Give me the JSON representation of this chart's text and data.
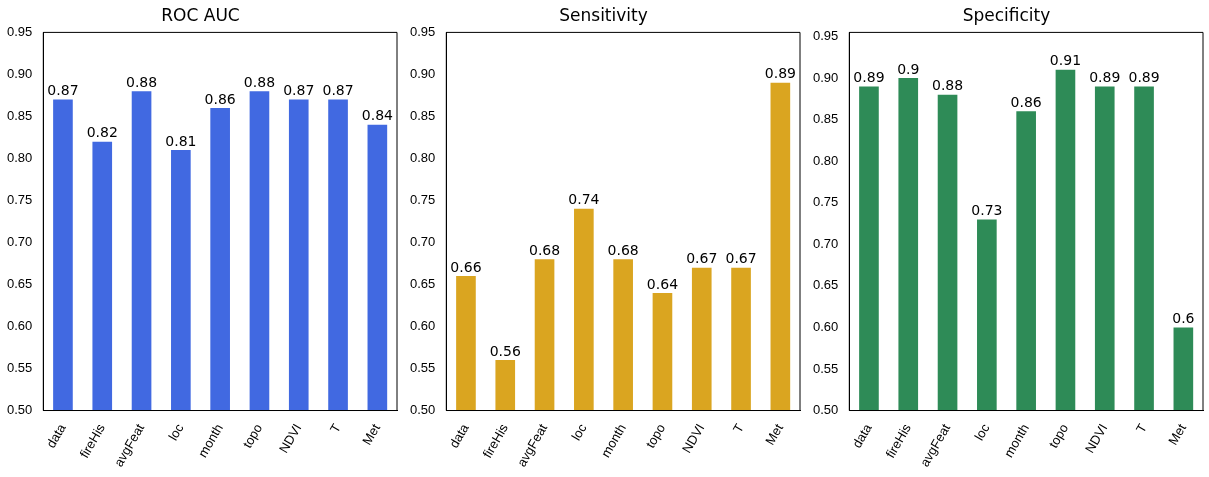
{
  "chart_data": [
    {
      "type": "bar",
      "title": "ROC AUC",
      "categories": [
        "data",
        "fireHis",
        "avgFeat",
        "loc",
        "month",
        "topo",
        "NDVI",
        "T",
        "Met"
      ],
      "values": [
        0.87,
        0.82,
        0.88,
        0.81,
        0.86,
        0.88,
        0.87,
        0.87,
        0.84
      ],
      "color": "#4169e1",
      "ylim": [
        0.5,
        0.95
      ],
      "yticks": [
        {
          "value": 0.5,
          "label": "0.50"
        },
        {
          "value": 0.55,
          "label": "0.55"
        },
        {
          "value": 0.6,
          "label": "0.60"
        },
        {
          "value": 0.65,
          "label": "0.65"
        },
        {
          "value": 0.7,
          "label": "0.70"
        },
        {
          "value": 0.75,
          "label": "0.75"
        },
        {
          "value": 0.8,
          "label": "0.80"
        },
        {
          "value": 0.85,
          "label": "0.85"
        },
        {
          "value": 0.9,
          "label": "0.90"
        },
        {
          "value": 0.95,
          "label": "0.95"
        }
      ],
      "data_labels": true,
      "grid": false,
      "legend": false
    },
    {
      "type": "bar",
      "title": "Sensitivity",
      "categories": [
        "data",
        "fireHis",
        "avgFeat",
        "loc",
        "month",
        "topo",
        "NDVI",
        "T",
        "Met"
      ],
      "values": [
        0.66,
        0.56,
        0.68,
        0.74,
        0.68,
        0.64,
        0.67,
        0.67,
        0.89
      ],
      "color": "#daa520",
      "ylim": [
        0.5,
        0.95
      ],
      "yticks": [
        {
          "value": 0.5,
          "label": "0.50"
        },
        {
          "value": 0.55,
          "label": "0.55"
        },
        {
          "value": 0.6,
          "label": "0.60"
        },
        {
          "value": 0.65,
          "label": "0.65"
        },
        {
          "value": 0.7,
          "label": "0.70"
        },
        {
          "value": 0.75,
          "label": "0.75"
        },
        {
          "value": 0.8,
          "label": "0.80"
        },
        {
          "value": 0.85,
          "label": "0.85"
        },
        {
          "value": 0.9,
          "label": "0.90"
        },
        {
          "value": 0.95,
          "label": "0.95"
        }
      ],
      "data_labels": true,
      "grid": false,
      "legend": false
    },
    {
      "type": "bar",
      "title": "Specificity",
      "categories": [
        "data",
        "fireHis",
        "avgFeat",
        "loc",
        "month",
        "topo",
        "NDVI",
        "T",
        "Met"
      ],
      "values": [
        0.89,
        0.9,
        0.88,
        0.73,
        0.86,
        0.91,
        0.89,
        0.89,
        0.6
      ],
      "color": "#2e8b57",
      "ylim": [
        0.5,
        0.955
      ],
      "yticks": [
        {
          "value": 0.5,
          "label": "0.50"
        },
        {
          "value": 0.55,
          "label": "0.55"
        },
        {
          "value": 0.6,
          "label": "0.60"
        },
        {
          "value": 0.65,
          "label": "0.65"
        },
        {
          "value": 0.7,
          "label": "0.70"
        },
        {
          "value": 0.75,
          "label": "0.75"
        },
        {
          "value": 0.8,
          "label": "0.80"
        },
        {
          "value": 0.85,
          "label": "0.85"
        },
        {
          "value": 0.9,
          "label": "0.90"
        },
        {
          "value": 0.95,
          "label": "0.95"
        }
      ],
      "data_labels": true,
      "grid": false,
      "legend": false
    }
  ]
}
